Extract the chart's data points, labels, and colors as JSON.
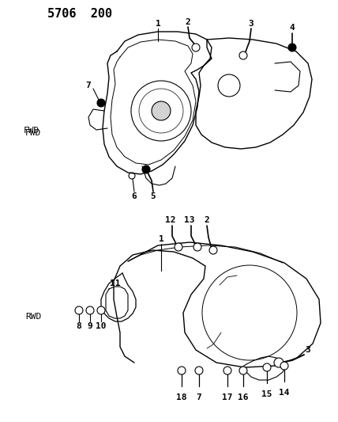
{
  "title": "5706  200",
  "fwd_label": "FWD",
  "rwd_label": "RWD",
  "bg_color": "#ffffff",
  "tc": "#000000",
  "lw": 0.8,
  "figsize": [
    4.28,
    5.33
  ],
  "dpi": 100
}
